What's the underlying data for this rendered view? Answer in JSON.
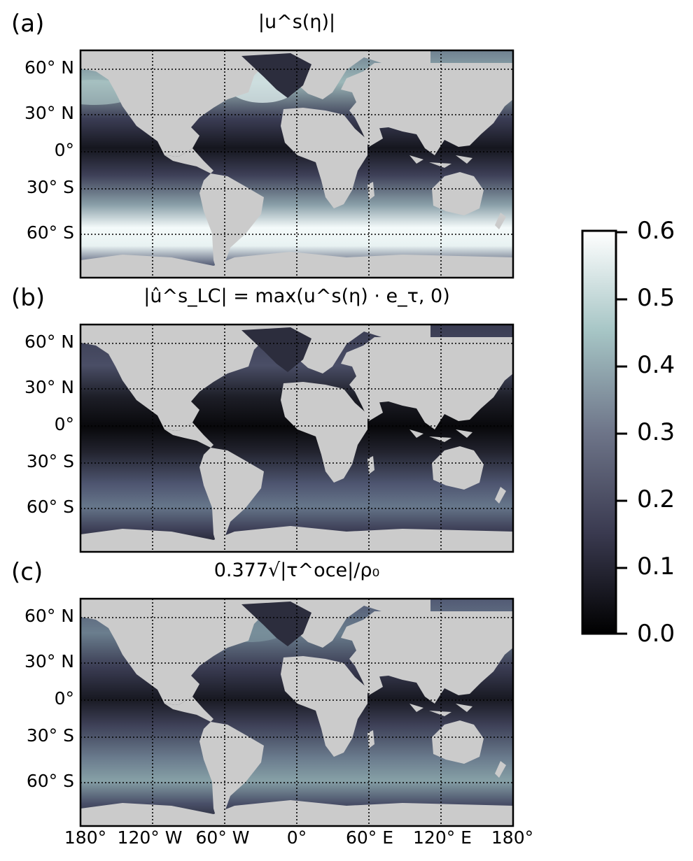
{
  "figure": {
    "colormap": "bone",
    "land_color": "#cbcbcb",
    "gridline_style": "dotted"
  },
  "panels": [
    {
      "letter": "(a)",
      "title": "|u^s(η)|"
    },
    {
      "letter": "(b)",
      "title": "|û^s_LC| = max(u^s(η) · e_τ, 0)"
    },
    {
      "letter": "(c)",
      "title": "0.377√|τ^oce|/ρ₀"
    }
  ],
  "latitude_labels": [
    "60° N",
    "30° N",
    "0°",
    "30° S",
    "60° S"
  ],
  "longitude_labels": [
    "180°",
    "120° W",
    "60° W",
    "0°",
    "60° E",
    "120° E",
    "180°"
  ],
  "colorbar": {
    "min": 0.0,
    "max": 0.6,
    "ticks": [
      "0.0",
      "0.1",
      "0.2",
      "0.3",
      "0.4",
      "0.5",
      "0.6"
    ]
  }
}
